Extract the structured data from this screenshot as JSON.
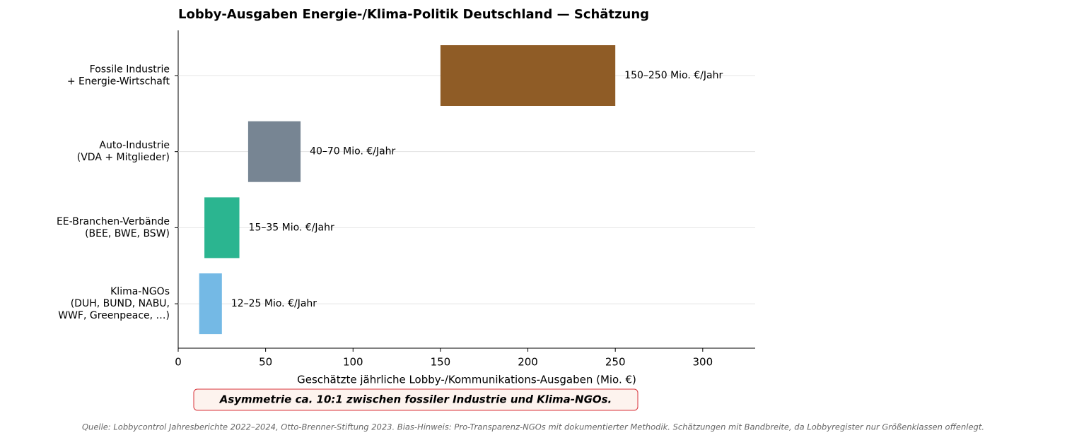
{
  "chart_data": {
    "type": "range_bar",
    "title": "Lobby-Ausgaben Energie-/Klima-Politik Deutschland — Schätzung",
    "categories": [
      [
        "Fossile Industrie",
        "+ Energie-Wirtschaft"
      ],
      [
        "Auto-Industrie",
        "(VDA + Mitglieder)"
      ],
      [
        "EE-Branchen-Verbände",
        "(BEE, BWE, BSW)"
      ],
      [
        "Klima-NGOs",
        "(DUH, BUND, NABU,",
        "WWF, Greenpeace, …)"
      ]
    ],
    "low": [
      150,
      40,
      15,
      12
    ],
    "high": [
      250,
      70,
      35,
      25
    ],
    "colors": [
      "#8f5c26",
      "#778593",
      "#2bb590",
      "#74b9e5"
    ],
    "value_labels": [
      "150–250 Mio. €/Jahr",
      "40–70 Mio. €/Jahr",
      "15–35 Mio. €/Jahr",
      "12–25 Mio. €/Jahr"
    ],
    "xlabel": "Geschätzte jährliche Lobby-/Kommunikations-Ausgaben (Mio. €)",
    "xlim": [
      0,
      330
    ],
    "xticks": [
      0,
      50,
      100,
      150,
      200,
      250,
      300
    ],
    "grid": true,
    "annotation": "Asymmetrie ca. 10:1 zwischen fossiler Industrie und Klima-NGOs.",
    "source": "Quelle: Lobbycontrol Jahresberichte 2022–2024, Otto-Brenner-Stiftung 2023. Bias-Hinweis: Pro-Transparenz-NGOs mit dokumentierter Methodik. Schätzungen mit Bandbreite, da Lobbyregister nur Größenklassen offenlegt."
  }
}
